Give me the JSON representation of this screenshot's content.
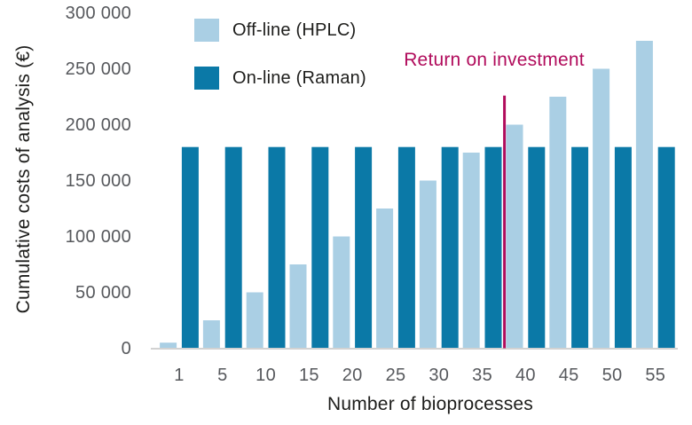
{
  "colors": {
    "background": "#ffffff",
    "offline_bar": "#aacfe4",
    "online_bar": "#0b79a7",
    "annotation": "#b10c5c",
    "axis_line": "#d2d2d2",
    "tick_text": "#56585c",
    "title_text": "#1d1d1b"
  },
  "chart_data": {
    "type": "bar",
    "title": "",
    "xlabel": "Number of bioprocesses",
    "ylabel": "Cumulative costs of analysis (€)",
    "categories": [
      "1",
      "5",
      "10",
      "15",
      "20",
      "25",
      "30",
      "35",
      "40",
      "45",
      "50",
      "55"
    ],
    "series": [
      {
        "name": "Off-line (HPLC)",
        "color": "#aacfe4",
        "values": [
          5000,
          25000,
          50000,
          75000,
          100000,
          125000,
          150000,
          175000,
          200000,
          225000,
          250000,
          275000
        ]
      },
      {
        "name": "On-line (Raman)",
        "color": "#0b79a7",
        "values": [
          180000,
          180000,
          180000,
          180000,
          180000,
          180000,
          180000,
          180000,
          180000,
          180000,
          180000,
          180000
        ]
      }
    ],
    "ylim": [
      0,
      300000
    ],
    "ytick_values": [
      0,
      50000,
      100000,
      150000,
      200000,
      250000,
      300000
    ],
    "ytick_labels": [
      "0",
      "50 000",
      "100 000",
      "150 000",
      "200 000",
      "250 000",
      "300 000"
    ],
    "grid": false,
    "legend_position": "top-left-inside",
    "annotation": {
      "text": "Return on investment",
      "color": "#b10c5c",
      "line_between_categories": [
        "35",
        "40"
      ],
      "line_top_value": 226000
    }
  }
}
